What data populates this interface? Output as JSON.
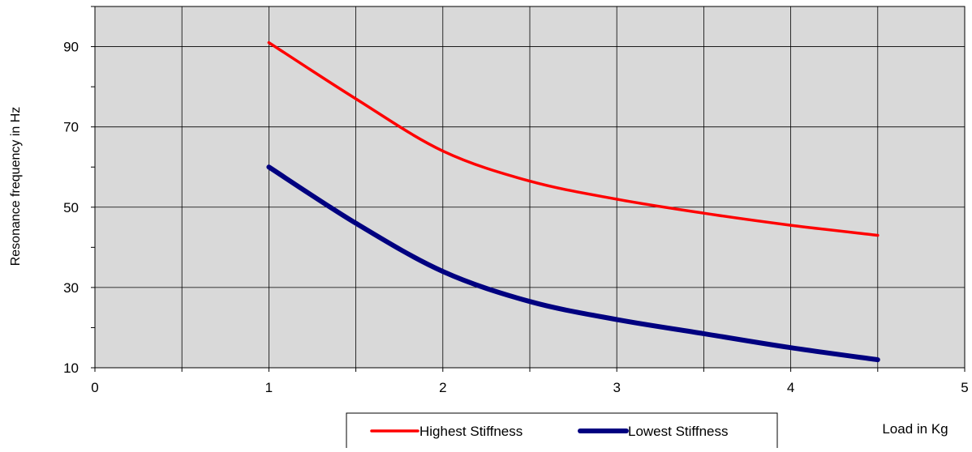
{
  "chart_data": {
    "type": "line",
    "title": "",
    "xlabel": "Load in Kg",
    "ylabel": "Resonance frequency in Hz",
    "xlim": [
      0,
      5
    ],
    "ylim": [
      10,
      100
    ],
    "x_ticks": [
      0,
      0.5,
      1,
      1.5,
      2,
      2.5,
      3,
      3.5,
      4,
      4.5,
      5
    ],
    "x_tick_labels": [
      "0",
      "1",
      "2",
      "3",
      "4",
      "5"
    ],
    "y_ticks": [
      10,
      20,
      30,
      40,
      50,
      60,
      70,
      80,
      90,
      100
    ],
    "y_tick_labels": [
      "10",
      "30",
      "50",
      "70",
      "90"
    ],
    "grid": true,
    "plot_background": "#d9d9d9",
    "legend_position": "bottom",
    "series": [
      {
        "name": "Highest Stiffness",
        "color": "#ff0000",
        "x": [
          1,
          1.5,
          2,
          2.5,
          3,
          3.5,
          4,
          4.5
        ],
        "values": [
          91,
          77,
          64,
          56.5,
          52,
          48.5,
          45.5,
          43
        ]
      },
      {
        "name": "Lowest Stiffness",
        "color": "#000080",
        "x": [
          1,
          1.5,
          2,
          2.5,
          3,
          3.5,
          4,
          4.5
        ],
        "values": [
          60,
          46,
          34,
          26.5,
          22,
          18.5,
          15,
          12
        ]
      }
    ]
  }
}
